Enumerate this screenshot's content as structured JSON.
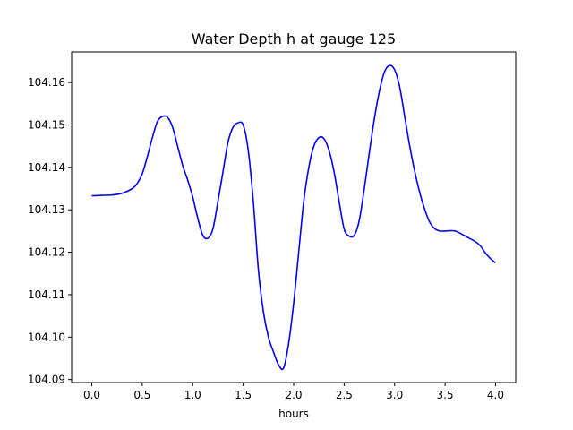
{
  "chart_data": {
    "type": "line",
    "title": "Water Depth h at gauge 125",
    "xlabel": "hours",
    "ylabel": "",
    "xlim": [
      -0.2,
      4.2
    ],
    "ylim": [
      104.0893,
      104.1672
    ],
    "xticks": [
      0.0,
      0.5,
      1.0,
      1.5,
      2.0,
      2.5,
      3.0,
      3.5,
      4.0
    ],
    "xtick_labels": [
      "0.0",
      "0.5",
      "1.0",
      "1.5",
      "2.0",
      "2.5",
      "3.0",
      "3.5",
      "4.0"
    ],
    "yticks": [
      104.09,
      104.1,
      104.11,
      104.12,
      104.13,
      104.14,
      104.15,
      104.16
    ],
    "ytick_labels": [
      "104.09",
      "104.10",
      "104.11",
      "104.12",
      "104.13",
      "104.14",
      "104.15",
      "104.16"
    ],
    "grid": false,
    "series": [
      {
        "name": "",
        "color": "#0000ff",
        "x": [
          0.0,
          0.1,
          0.2,
          0.3,
          0.4,
          0.45,
          0.5,
          0.55,
          0.6,
          0.65,
          0.7,
          0.75,
          0.8,
          0.85,
          0.9,
          0.95,
          1.0,
          1.05,
          1.1,
          1.15,
          1.2,
          1.25,
          1.3,
          1.35,
          1.4,
          1.45,
          1.5,
          1.55,
          1.6,
          1.65,
          1.7,
          1.75,
          1.8,
          1.85,
          1.9,
          1.95,
          2.0,
          2.05,
          2.1,
          2.15,
          2.2,
          2.25,
          2.3,
          2.35,
          2.4,
          2.45,
          2.5,
          2.55,
          2.6,
          2.65,
          2.7,
          2.75,
          2.8,
          2.85,
          2.9,
          2.95,
          3.0,
          3.05,
          3.1,
          3.15,
          3.2,
          3.25,
          3.3,
          3.35,
          3.4,
          3.45,
          3.5,
          3.6,
          3.7,
          3.8,
          3.85,
          3.9,
          3.95,
          4.0
        ],
        "values": [
          104.1333,
          104.1334,
          104.1335,
          104.1339,
          104.135,
          104.1362,
          104.1385,
          104.1425,
          104.147,
          104.1508,
          104.152,
          104.1518,
          104.1495,
          104.145,
          104.1405,
          104.137,
          104.133,
          104.128,
          104.124,
          104.1233,
          104.1255,
          104.132,
          104.139,
          104.146,
          104.1495,
          104.1505,
          104.15,
          104.144,
          104.132,
          104.116,
          104.106,
          104.1,
          104.0965,
          104.0935,
          104.0927,
          104.0985,
          104.108,
          104.12,
          104.132,
          104.14,
          104.145,
          104.147,
          104.1468,
          104.144,
          104.139,
          104.132,
          104.1255,
          104.1238,
          104.124,
          104.1275,
          104.135,
          104.1435,
          104.1515,
          104.158,
          104.1625,
          104.164,
          104.163,
          104.159,
          104.152,
          104.145,
          104.139,
          104.134,
          104.13,
          104.127,
          104.1255,
          104.125,
          104.125,
          104.125,
          104.1238,
          104.1225,
          104.1215,
          104.1198,
          104.1185,
          104.1175
        ]
      }
    ]
  }
}
